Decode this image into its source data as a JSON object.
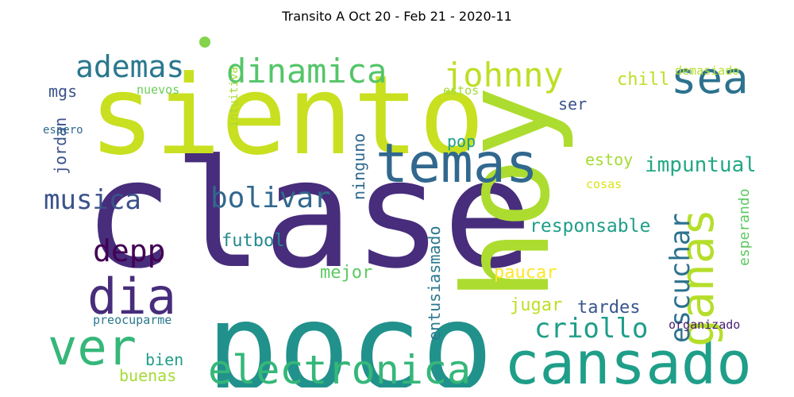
{
  "title": "Transito A Oct 20 - Feb 21 - 2020-11",
  "words": [
    {
      "text": "clase",
      "color": "#472d7b"
    },
    {
      "text": "poco",
      "color": "#21918c"
    },
    {
      "text": "siento",
      "color": "#c8e020"
    },
    {
      "text": "hoy",
      "color": "#addc30"
    },
    {
      "text": "cansado",
      "color": "#1f9e89"
    },
    {
      "text": "temas",
      "color": "#31688e"
    },
    {
      "text": "ver",
      "color": "#35b779"
    },
    {
      "text": "electronica",
      "color": "#35b779"
    },
    {
      "text": "dia",
      "color": "#472d7b"
    },
    {
      "text": "ganas",
      "color": "#b5de2b"
    },
    {
      "text": "escuchar",
      "color": "#2c728e"
    },
    {
      "text": "dinamica",
      "color": "#54c568"
    },
    {
      "text": "ademas",
      "color": "#2a788e"
    },
    {
      "text": "johnny",
      "color": "#bddf26"
    },
    {
      "text": "sea",
      "color": "#2c728e"
    },
    {
      "text": "musica",
      "color": "#3b528b"
    },
    {
      "text": "bolivar",
      "color": "#31688e"
    },
    {
      "text": "criollo",
      "color": "#1f9e89"
    },
    {
      "text": "depp",
      "color": "#440154"
    },
    {
      "text": "impuntual",
      "color": "#22a884"
    },
    {
      "text": "responsable",
      "color": "#1f9e89"
    },
    {
      "text": "futbol",
      "color": "#23898e"
    },
    {
      "text": "tardes",
      "color": "#39568c"
    },
    {
      "text": "jugar",
      "color": "#bddf26"
    },
    {
      "text": "mejor",
      "color": "#5ec962"
    },
    {
      "text": "paucar",
      "color": "#fde725"
    },
    {
      "text": "estoy",
      "color": "#a5db36"
    },
    {
      "text": "chill",
      "color": "#bddf26"
    },
    {
      "text": "ser",
      "color": "#3b528b"
    },
    {
      "text": "pop",
      "color": "#1f9e89"
    },
    {
      "text": "bien",
      "color": "#1f9e89"
    },
    {
      "text": "buenas",
      "color": "#a5db36"
    },
    {
      "text": "mgs",
      "color": "#3b528b"
    },
    {
      "text": "jordan",
      "color": "#3b528b"
    },
    {
      "text": "ninguno",
      "color": "#31688e"
    },
    {
      "text": "entusiasmado",
      "color": "#2a788e"
    },
    {
      "text": "esperando",
      "color": "#5ec962"
    },
    {
      "text": "nuevos",
      "color": "#6ccd5a"
    },
    {
      "text": "estos",
      "color": "#a5db36"
    },
    {
      "text": "intuitiva",
      "color": "#a5db36"
    },
    {
      "text": "demasiado",
      "color": "#b5de2b"
    },
    {
      "text": "cosas",
      "color": "#dde318"
    },
    {
      "text": "espero",
      "color": "#31688e"
    },
    {
      "text": "preocuparme",
      "color": "#2a788e"
    },
    {
      "text": "organizado",
      "color": "#482173"
    },
    {
      "text": "dot",
      "color": "#84d44b"
    }
  ]
}
